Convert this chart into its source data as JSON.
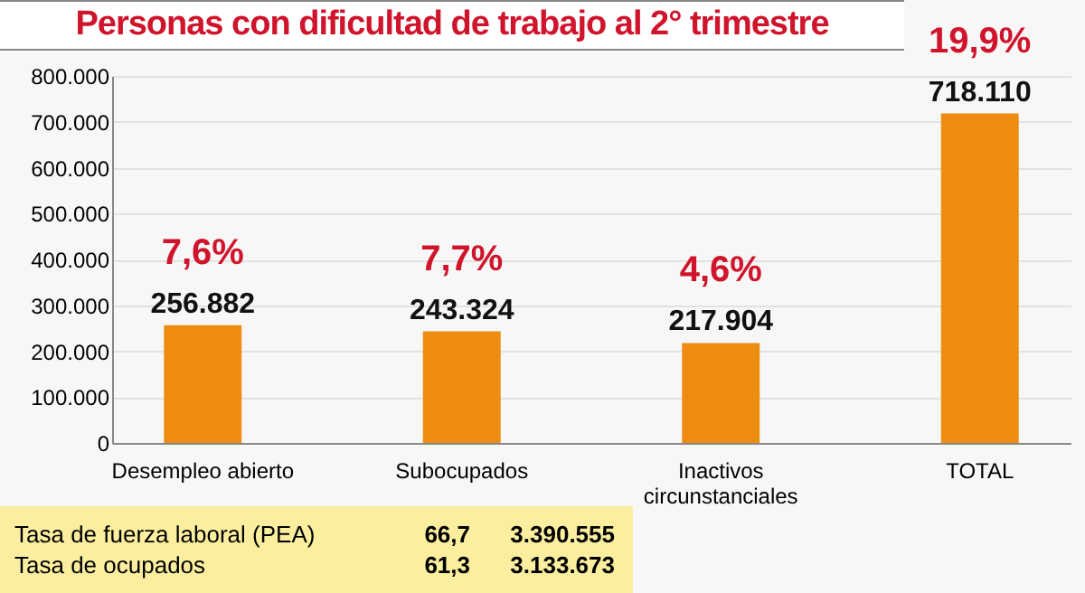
{
  "chart_data": {
    "type": "bar",
    "title": "Personas con dificultad de trabajo al 2° trimestre",
    "categories": [
      "Desempleo abierto",
      "Subocupados",
      "Inactivos circunstanciales",
      "TOTAL"
    ],
    "values": [
      256882,
      243324,
      217904,
      718110
    ],
    "color": "#ee8c12",
    "value_labels": [
      "256.882",
      "243.324",
      "217.904",
      "718.110"
    ],
    "ylim": [
      0,
      800000
    ],
    "yticks": [
      0,
      {
        "value": 100000,
        "label": "100.000"
      },
      {
        "value": 200000,
        "label": "200.000"
      },
      {
        "value": 300000,
        "label": "300.000"
      },
      {
        "value": 400000,
        "label": "400.000"
      },
      {
        "value": 500000,
        "label": "500.000"
      },
      {
        "value": 600000,
        "label": "600.000"
      },
      {
        "value": 700000,
        "label": "700.000"
      },
      {
        "value": 800000,
        "label": "800.000"
      }
    ],
    "grid": "y",
    "annotations": [
      {
        "text": "7,6%",
        "x": "Desempleo abierto",
        "y": 256882
      },
      {
        "text": "7,7%",
        "x": "Subocupados",
        "y": 243324
      },
      {
        "text": "4,6%",
        "x": "Inactivos circunstanciales",
        "y": 217904
      },
      {
        "text": "19,9%",
        "x": "TOTAL",
        "y": 718110
      },
      "Tasa de fuerza laboral (PEA)",
      "66,7",
      "3.390.555",
      "Tasa de ocupados",
      "61,3",
      "3.133.673"
    ]
  }
}
